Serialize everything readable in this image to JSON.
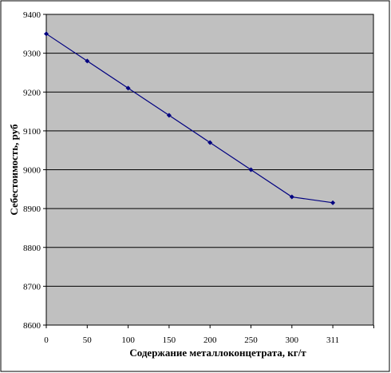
{
  "chart_data": {
    "type": "line",
    "title": "",
    "xlabel": "Содержание металлоконцетрата, кг/т",
    "ylabel": "Себестоимость, руб",
    "categories": [
      "0",
      "50",
      "100",
      "150",
      "200",
      "250",
      "300",
      "311"
    ],
    "series": [
      {
        "values": [
          9350,
          9280,
          9210,
          9140,
          9070,
          9000,
          8930,
          8915
        ]
      }
    ],
    "ylim": [
      8600,
      9400
    ],
    "yticks": [
      8600,
      8700,
      8800,
      8900,
      9000,
      9100,
      9200,
      9300,
      9400
    ],
    "grid": "horizontal",
    "legend": "none",
    "colors": {
      "plot_background": "#c0c0c0",
      "gridline": "#000000",
      "series_line": "#000080",
      "marker": "#000080",
      "frame": "#000000"
    }
  }
}
